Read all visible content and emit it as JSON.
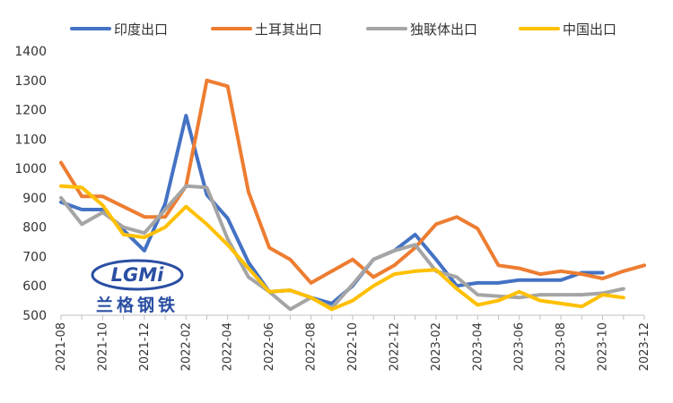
{
  "chart_data": {
    "type": "line",
    "title": "",
    "xlabel": "",
    "ylabel": "",
    "ylim": [
      500,
      1400
    ],
    "yticks": [
      500,
      600,
      700,
      800,
      900,
      1000,
      1100,
      1200,
      1300,
      1400
    ],
    "grid": false,
    "legend_position": "top",
    "x": [
      "2021-08",
      "2021-09",
      "2021-10",
      "2021-11",
      "2021-12",
      "2022-01",
      "2022-02",
      "2022-03",
      "2022-04",
      "2022-05",
      "2022-06",
      "2022-07",
      "2022-08",
      "2022-09",
      "2022-10",
      "2022-11",
      "2022-12",
      "2023-01",
      "2023-02",
      "2023-03",
      "2023-04",
      "2023-05",
      "2023-06",
      "2023-07",
      "2023-08",
      "2023-09",
      "2023-10",
      "2023-11",
      "2023-12"
    ],
    "x_tick_labels": [
      "2021-08",
      "2021-10",
      "2021-12",
      "2022-02",
      "2022-04",
      "2022-06",
      "2022-08",
      "2022-10",
      "2022-12",
      "2023-02",
      "2023-04",
      "2023-06",
      "2023-08",
      "2023-10",
      "2023-12"
    ],
    "series": [
      {
        "name": "印度出口",
        "color": "#4472c4",
        "values": [
          885,
          860,
          860,
          790,
          720,
          880,
          1180,
          910,
          830,
          680,
          580,
          585,
          560,
          540,
          600,
          690,
          720,
          775,
          690,
          600,
          610,
          610,
          620,
          620,
          620,
          645,
          645,
          null,
          null
        ]
      },
      {
        "name": "土耳其出口",
        "color": "#ed7d31",
        "values": [
          1020,
          905,
          905,
          870,
          835,
          835,
          940,
          1300,
          1280,
          920,
          730,
          690,
          610,
          650,
          690,
          630,
          670,
          730,
          810,
          835,
          795,
          670,
          660,
          640,
          650,
          640,
          625,
          650,
          670
        ]
      },
      {
        "name": "独联体出口",
        "color": "#a5a5a5",
        "values": [
          900,
          810,
          850,
          800,
          780,
          860,
          940,
          935,
          760,
          630,
          580,
          520,
          560,
          525,
          605,
          690,
          720,
          740,
          650,
          630,
          570,
          565,
          560,
          570,
          570,
          570,
          575,
          590,
          null
        ]
      },
      {
        "name": "中国出口",
        "color": "#ffc000",
        "values": [
          940,
          935,
          875,
          775,
          765,
          800,
          870,
          810,
          740,
          660,
          580,
          585,
          560,
          520,
          550,
          600,
          640,
          650,
          655,
          590,
          535,
          550,
          580,
          550,
          540,
          530,
          570,
          560,
          null
        ]
      }
    ]
  },
  "watermark": {
    "logo_text": "LGMi",
    "company_name": "兰格钢铁"
  }
}
